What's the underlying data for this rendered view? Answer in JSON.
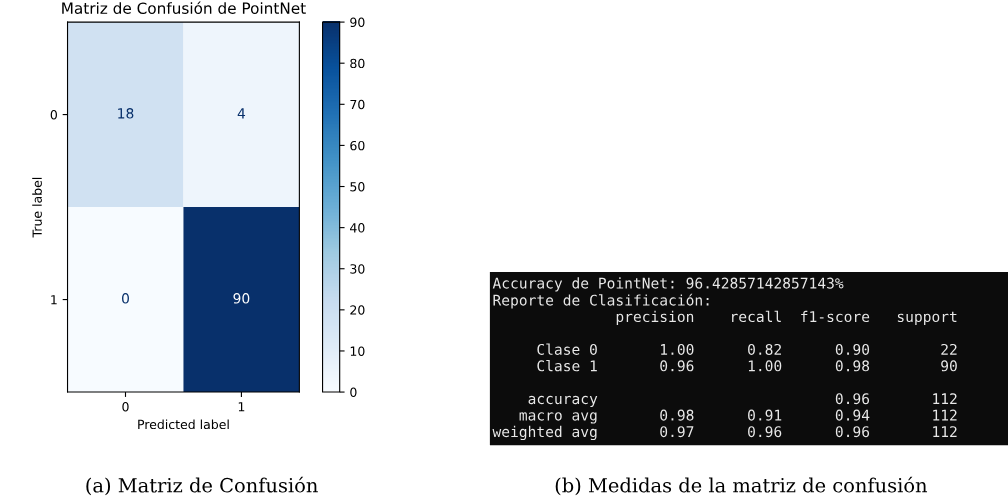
{
  "chart_data": [
    {
      "type": "heatmap",
      "title": "Matriz de Confusión de PointNet",
      "xlabel": "Predicted label",
      "ylabel": "True label",
      "categories": [
        "0",
        "1"
      ],
      "y_categories": [
        "0",
        "1"
      ],
      "cells": [
        [
          18,
          4
        ],
        [
          0,
          90
        ]
      ],
      "data_labels": true,
      "clim": [
        0,
        90
      ],
      "cticks": [
        0,
        10,
        20,
        30,
        40,
        50,
        60,
        70,
        80,
        90
      ],
      "grid": false,
      "annotations": [
        "(a) Matriz de Confusión"
      ]
    },
    {
      "type": "other",
      "annotations": [
        "Accuracy de PointNet: 96.42857142857143%\nReporte de Clasificación:\n              precision    recall  f1-score   support\n\n     Clase 0       1.00      0.82      0.90        22\n     Clase 1       0.96      1.00      0.98        90\n\n    accuracy                           0.96       112\n   macro avg       0.98      0.91      0.94       112\nweighted avg       0.97      0.96      0.96       112",
        "(b) Medidas de la matriz de confusión"
      ]
    }
  ]
}
